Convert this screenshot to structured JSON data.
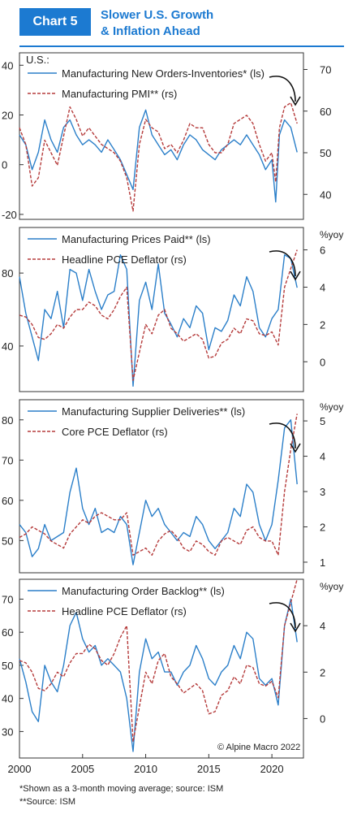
{
  "header": {
    "tag": "Chart 5",
    "title_line1": "Slower U.S. Growth",
    "title_line2": "& Inflation Ahead"
  },
  "colors": {
    "accent": "#1c7ad1",
    "blue_series": "#2b7fc9",
    "red_series": "#b53b3b",
    "axis": "#333333"
  },
  "chart_data": [
    {
      "type": "line",
      "region_label": "U.S.:",
      "x_range": [
        2000,
        2022.5
      ],
      "left_axis": {
        "ticks": [
          -20,
          0,
          20,
          40
        ],
        "range": [
          -22,
          45
        ]
      },
      "right_axis": {
        "ticks": [
          40,
          50,
          60,
          70
        ],
        "range": [
          34,
          74
        ],
        "unit": ""
      },
      "annotation": "arrow-down",
      "series": [
        {
          "name": "Manufacturing New Orders-Inventories* (ls)",
          "axis": "left",
          "style": "solid",
          "x": [
            2000,
            2000.5,
            2001,
            2001.5,
            2002,
            2002.5,
            2003,
            2003.5,
            2004,
            2004.5,
            2005,
            2005.5,
            2006,
            2006.5,
            2007,
            2007.5,
            2008,
            2008.5,
            2009,
            2009.5,
            2010,
            2010.5,
            2011,
            2011.5,
            2012,
            2012.5,
            2013,
            2013.5,
            2014,
            2014.5,
            2015,
            2015.5,
            2016,
            2016.5,
            2017,
            2017.5,
            2018,
            2018.5,
            2019,
            2019.5,
            2020,
            2020.3,
            2020.6,
            2021,
            2021.5,
            2022
          ],
          "y": [
            12,
            8,
            -2,
            5,
            18,
            10,
            5,
            15,
            18,
            12,
            8,
            10,
            8,
            5,
            10,
            6,
            2,
            -4,
            -10,
            15,
            22,
            12,
            8,
            4,
            6,
            2,
            8,
            12,
            10,
            6,
            4,
            2,
            6,
            8,
            10,
            8,
            12,
            8,
            4,
            -2,
            2,
            -15,
            12,
            18,
            15,
            5
          ]
        },
        {
          "name": "Manufacturing PMI** (rs)",
          "axis": "right",
          "style": "dashed",
          "x": [
            2000,
            2000.5,
            2001,
            2001.5,
            2002,
            2002.5,
            2003,
            2003.5,
            2004,
            2004.5,
            2005,
            2005.5,
            2006,
            2006.5,
            2007,
            2007.5,
            2008,
            2008.5,
            2009,
            2009.5,
            2010,
            2010.5,
            2011,
            2011.5,
            2012,
            2012.5,
            2013,
            2013.5,
            2014,
            2014.5,
            2015,
            2015.5,
            2016,
            2016.5,
            2017,
            2017.5,
            2018,
            2018.5,
            2019,
            2019.5,
            2020,
            2020.3,
            2020.6,
            2021,
            2021.5,
            2022
          ],
          "y": [
            56,
            52,
            42,
            44,
            53,
            50,
            47,
            54,
            61,
            58,
            54,
            56,
            54,
            52,
            51,
            50,
            48,
            44,
            36,
            52,
            58,
            56,
            55,
            51,
            52,
            50,
            53,
            57,
            56,
            56,
            52,
            50,
            50,
            52,
            57,
            58,
            59,
            57,
            52,
            48,
            50,
            43,
            56,
            61,
            62,
            57
          ]
        }
      ]
    },
    {
      "type": "line",
      "x_range": [
        2000,
        2022.5
      ],
      "left_axis": {
        "ticks": [
          40,
          80
        ],
        "range": [
          15,
          105
        ]
      },
      "right_axis": {
        "ticks": [
          0,
          2,
          4,
          6
        ],
        "range": [
          -1.6,
          7.2
        ],
        "unit": "%yoy"
      },
      "annotation": "arrow-down",
      "series": [
        {
          "name": "Manufacturing Prices Paid** (ls)",
          "axis": "left",
          "style": "solid",
          "x": [
            2000,
            2000.5,
            2001,
            2001.5,
            2002,
            2002.5,
            2003,
            2003.5,
            2004,
            2004.5,
            2005,
            2005.5,
            2006,
            2006.5,
            2007,
            2007.5,
            2008,
            2008.5,
            2009,
            2009.5,
            2010,
            2010.5,
            2011,
            2011.5,
            2012,
            2012.5,
            2013,
            2013.5,
            2014,
            2014.5,
            2015,
            2015.5,
            2016,
            2016.5,
            2017,
            2017.5,
            2018,
            2018.5,
            2019,
            2019.5,
            2020,
            2020.5,
            2021,
            2021.5,
            2022
          ],
          "y": [
            78,
            58,
            45,
            32,
            60,
            55,
            70,
            50,
            82,
            80,
            65,
            82,
            70,
            60,
            68,
            70,
            90,
            82,
            18,
            65,
            75,
            60,
            85,
            58,
            52,
            45,
            55,
            50,
            62,
            58,
            38,
            50,
            48,
            54,
            68,
            62,
            78,
            70,
            50,
            45,
            55,
            60,
            90,
            88,
            72
          ]
        },
        {
          "name": "Headline PCE Deflator (rs)",
          "axis": "right",
          "style": "dashed",
          "x": [
            2000,
            2000.5,
            2001,
            2001.5,
            2002,
            2002.5,
            2003,
            2003.5,
            2004,
            2004.5,
            2005,
            2005.5,
            2006,
            2006.5,
            2007,
            2007.5,
            2008,
            2008.5,
            2009,
            2009.5,
            2010,
            2010.5,
            2011,
            2011.5,
            2012,
            2012.5,
            2013,
            2013.5,
            2014,
            2014.5,
            2015,
            2015.5,
            2016,
            2016.5,
            2017,
            2017.5,
            2018,
            2018.5,
            2019,
            2019.5,
            2020,
            2020.5,
            2021,
            2021.5,
            2022
          ],
          "y": [
            2.5,
            2.4,
            2.0,
            1.3,
            1.2,
            1.5,
            2.0,
            1.8,
            2.4,
            2.8,
            2.8,
            3.2,
            3.0,
            2.5,
            2.3,
            2.8,
            3.5,
            4.0,
            -1.0,
            0.5,
            2.0,
            1.5,
            2.5,
            2.8,
            1.8,
            1.5,
            1.1,
            1.3,
            1.5,
            1.2,
            0.2,
            0.3,
            1.0,
            1.2,
            1.8,
            1.5,
            2.3,
            2.2,
            1.5,
            1.4,
            1.6,
            0.9,
            4.0,
            5.0,
            6.0
          ]
        }
      ]
    },
    {
      "type": "line",
      "x_range": [
        2000,
        2022.5
      ],
      "left_axis": {
        "ticks": [
          50,
          60,
          70,
          80
        ],
        "range": [
          42,
          85
        ]
      },
      "right_axis": {
        "ticks": [
          1,
          2,
          3,
          4,
          5
        ],
        "range": [
          0.7,
          5.6
        ],
        "unit": "%yoy"
      },
      "annotation": "arrow-down",
      "series": [
        {
          "name": "Manufacturing Supplier Deliveries** (ls)",
          "axis": "left",
          "style": "solid",
          "x": [
            2000,
            2000.5,
            2001,
            2001.5,
            2002,
            2002.5,
            2003,
            2003.5,
            2004,
            2004.5,
            2005,
            2005.5,
            2006,
            2006.5,
            2007,
            2007.5,
            2008,
            2008.5,
            2009,
            2009.5,
            2010,
            2010.5,
            2011,
            2011.5,
            2012,
            2012.5,
            2013,
            2013.5,
            2014,
            2014.5,
            2015,
            2015.5,
            2016,
            2016.5,
            2017,
            2017.5,
            2018,
            2018.5,
            2019,
            2019.5,
            2020,
            2020.5,
            2021,
            2021.5,
            2022
          ],
          "y": [
            54,
            52,
            46,
            48,
            54,
            50,
            51,
            52,
            62,
            68,
            58,
            54,
            58,
            52,
            53,
            52,
            56,
            54,
            44,
            52,
            60,
            56,
            58,
            54,
            52,
            50,
            52,
            51,
            56,
            54,
            50,
            48,
            50,
            52,
            58,
            56,
            64,
            62,
            54,
            50,
            54,
            65,
            78,
            80,
            64
          ]
        },
        {
          "name": "Core PCE Deflator (rs)",
          "axis": "right",
          "style": "dashed",
          "x": [
            2000,
            2000.5,
            2001,
            2001.5,
            2002,
            2002.5,
            2003,
            2003.5,
            2004,
            2004.5,
            2005,
            2005.5,
            2006,
            2006.5,
            2007,
            2007.5,
            2008,
            2008.5,
            2009,
            2009.5,
            2010,
            2010.5,
            2011,
            2011.5,
            2012,
            2012.5,
            2013,
            2013.5,
            2014,
            2014.5,
            2015,
            2015.5,
            2016,
            2016.5,
            2017,
            2017.5,
            2018,
            2018.5,
            2019,
            2019.5,
            2020,
            2020.5,
            2021,
            2021.5,
            2022
          ],
          "y": [
            1.7,
            1.8,
            2.0,
            1.9,
            1.8,
            1.6,
            1.5,
            1.4,
            1.8,
            2.0,
            2.2,
            2.1,
            2.3,
            2.4,
            2.3,
            2.2,
            2.2,
            2.4,
            1.2,
            1.3,
            1.4,
            1.2,
            1.6,
            1.8,
            1.9,
            1.7,
            1.4,
            1.3,
            1.6,
            1.5,
            1.3,
            1.2,
            1.6,
            1.7,
            1.6,
            1.5,
            1.9,
            2.0,
            1.7,
            1.6,
            1.6,
            1.2,
            3.0,
            4.2,
            5.2
          ]
        }
      ]
    },
    {
      "type": "line",
      "x_range": [
        2000,
        2022.5
      ],
      "x_ticks": [
        2000,
        2005,
        2010,
        2015,
        2020
      ],
      "left_axis": {
        "ticks": [
          30,
          40,
          50,
          60,
          70
        ],
        "range": [
          22,
          76
        ]
      },
      "right_axis": {
        "ticks": [
          0,
          2,
          4
        ],
        "range": [
          -1.7,
          6.0
        ],
        "unit": "%yoy"
      },
      "annotation": "arrow-down",
      "copyright": "© Alpine Macro 2022",
      "series": [
        {
          "name": "Manufacturing Order Backlog** (ls)",
          "axis": "left",
          "style": "solid",
          "x": [
            2000,
            2000.5,
            2001,
            2001.5,
            2002,
            2002.5,
            2003,
            2003.5,
            2004,
            2004.5,
            2005,
            2005.5,
            2006,
            2006.5,
            2007,
            2007.5,
            2008,
            2008.5,
            2009,
            2009.5,
            2010,
            2010.5,
            2011,
            2011.5,
            2012,
            2012.5,
            2013,
            2013.5,
            2014,
            2014.5,
            2015,
            2015.5,
            2016,
            2016.5,
            2017,
            2017.5,
            2018,
            2018.5,
            2019,
            2019.5,
            2020,
            2020.5,
            2021,
            2021.5,
            2022
          ],
          "y": [
            52,
            45,
            36,
            33,
            50,
            45,
            42,
            50,
            62,
            66,
            58,
            54,
            56,
            50,
            52,
            50,
            48,
            40,
            24,
            48,
            58,
            52,
            54,
            48,
            48,
            44,
            48,
            50,
            56,
            52,
            46,
            44,
            48,
            50,
            56,
            52,
            60,
            58,
            46,
            44,
            46,
            38,
            62,
            70,
            57
          ]
        },
        {
          "name": "Headline PCE Deflator (rs)",
          "axis": "right",
          "style": "dashed",
          "x": [
            2000,
            2000.5,
            2001,
            2001.5,
            2002,
            2002.5,
            2003,
            2003.5,
            2004,
            2004.5,
            2005,
            2005.5,
            2006,
            2006.5,
            2007,
            2007.5,
            2008,
            2008.5,
            2009,
            2009.5,
            2010,
            2010.5,
            2011,
            2011.5,
            2012,
            2012.5,
            2013,
            2013.5,
            2014,
            2014.5,
            2015,
            2015.5,
            2016,
            2016.5,
            2017,
            2017.5,
            2018,
            2018.5,
            2019,
            2019.5,
            2020,
            2020.5,
            2021,
            2021.5,
            2022
          ],
          "y": [
            2.5,
            2.4,
            2.0,
            1.3,
            1.2,
            1.5,
            2.0,
            1.8,
            2.4,
            2.8,
            2.8,
            3.2,
            3.0,
            2.5,
            2.3,
            2.8,
            3.5,
            4.0,
            -1.0,
            0.5,
            2.0,
            1.5,
            2.5,
            2.8,
            1.8,
            1.5,
            1.1,
            1.3,
            1.5,
            1.2,
            0.2,
            0.3,
            1.0,
            1.2,
            1.8,
            1.5,
            2.3,
            2.2,
            1.5,
            1.4,
            1.6,
            0.9,
            4.0,
            5.0,
            6.0
          ]
        }
      ]
    }
  ],
  "footnotes": {
    "note1": "*Shown as a 3-month moving average; source: ISM",
    "note2": "**Source: ISM"
  }
}
